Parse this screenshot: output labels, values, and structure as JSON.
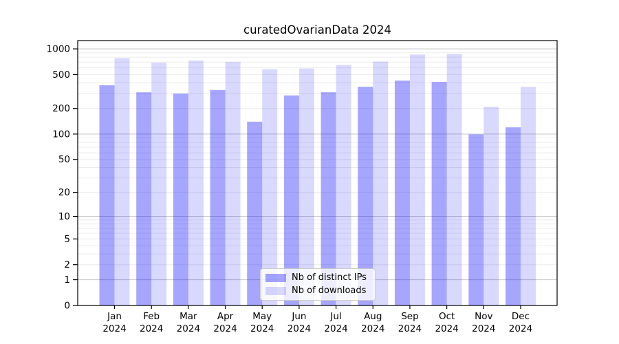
{
  "chart_data": {
    "type": "bar",
    "title": "curatedOvarianData 2024",
    "categories": [
      "Jan 2024",
      "Feb 2024",
      "Mar 2024",
      "Apr 2024",
      "May 2024",
      "Jun 2024",
      "Jul 2024",
      "Aug 2024",
      "Sep 2024",
      "Oct 2024",
      "Nov 2024",
      "Dec 2024"
    ],
    "series": [
      {
        "name": "Nb of distinct IPs",
        "color": "rgba(0,0,255,0.35)",
        "color_hex": "#a6a6ff",
        "values": [
          375,
          310,
          300,
          330,
          140,
          285,
          310,
          360,
          425,
          410,
          99,
          120
        ]
      },
      {
        "name": "Nb of downloads",
        "color": "rgba(0,0,255,0.15)",
        "color_hex": "#d9d9ff",
        "values": [
          780,
          690,
          730,
          705,
          580,
          590,
          650,
          710,
          860,
          875,
          210,
          360
        ]
      }
    ],
    "xlabel": "",
    "ylabel": "",
    "yscale": "log1p",
    "yticks": [
      0,
      1,
      2,
      5,
      10,
      20,
      50,
      100,
      200,
      500,
      1000
    ],
    "ylim": [
      0,
      1250
    ],
    "grid": {
      "orientation": "horizontal",
      "major_color": "#cdcdcd",
      "minor_color": "#ececec"
    },
    "legend_position": "lower-center-inside"
  }
}
